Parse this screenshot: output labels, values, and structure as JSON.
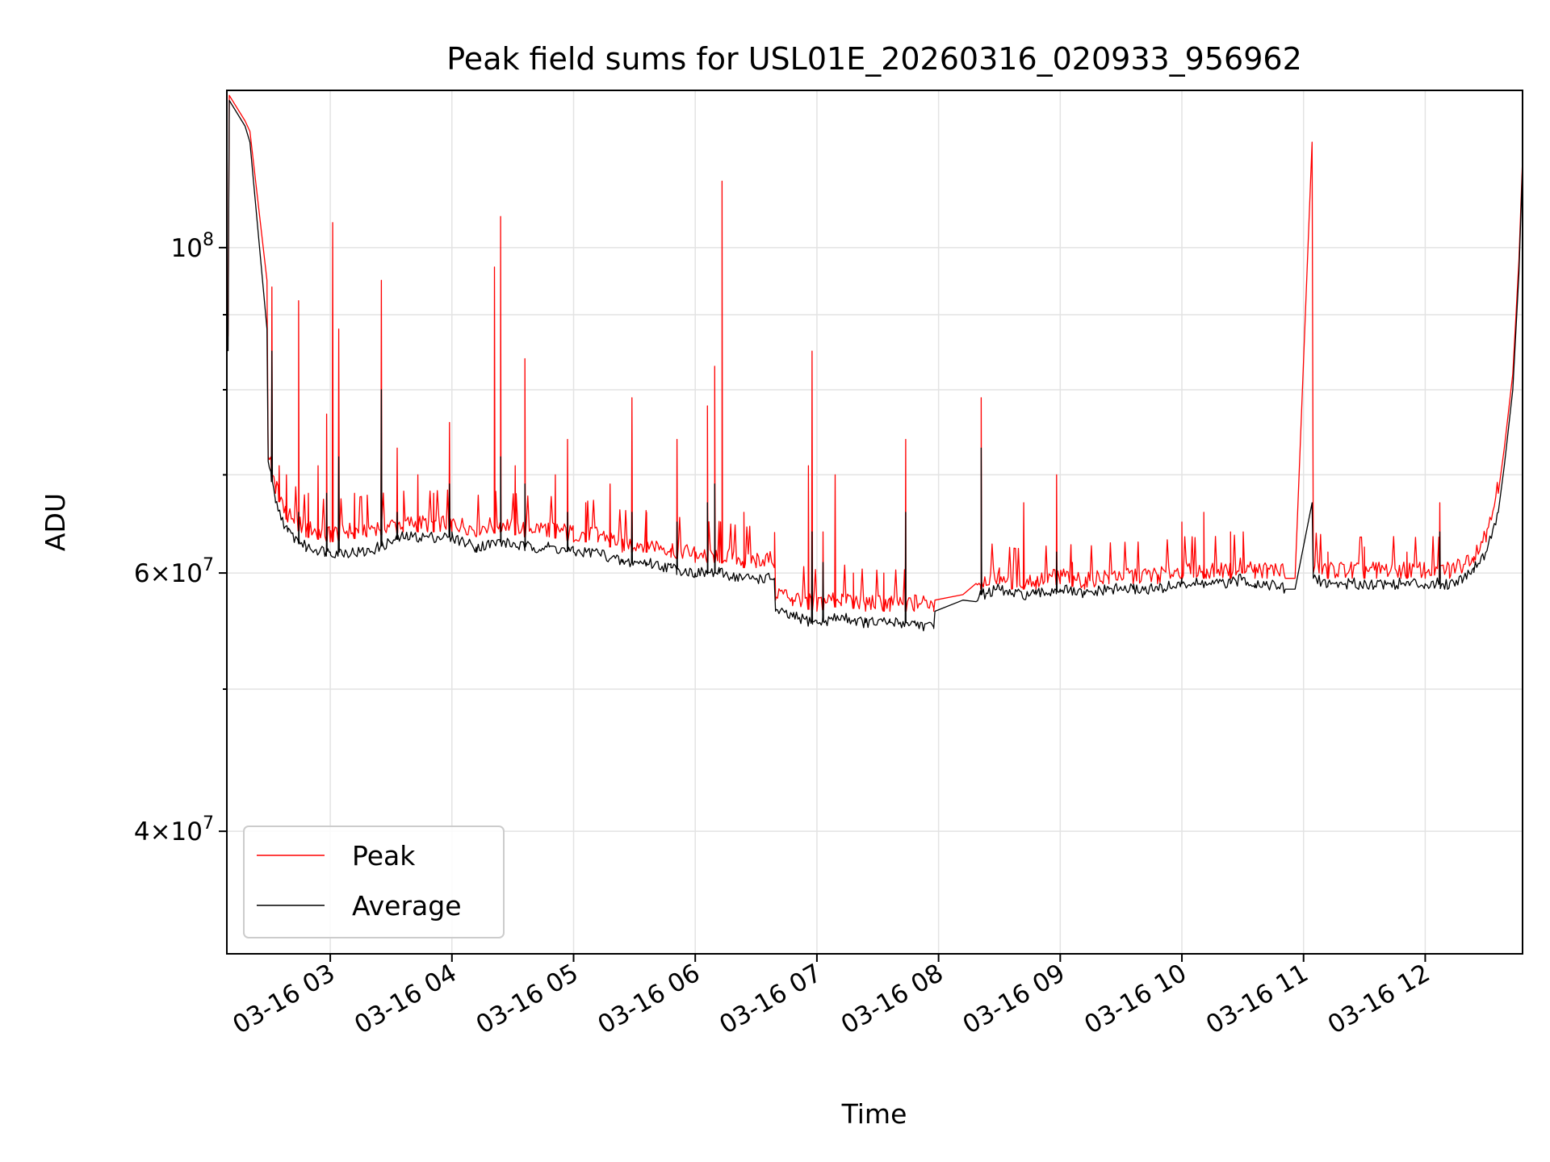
{
  "chart_data": {
    "type": "line",
    "title": "Peak field sums for USL01E_20260316_020933_956962",
    "xlabel": "Time",
    "ylabel": "ADU",
    "yscale": "log",
    "ylim": [
      33000000,
      128000000
    ],
    "xlim": [
      2.15,
      12.8
    ],
    "grid": true,
    "legend_position": "lower-left",
    "x_ticks": [
      {
        "value": 3,
        "label": "03-16 03"
      },
      {
        "value": 4,
        "label": "03-16 04"
      },
      {
        "value": 5,
        "label": "03-16 05"
      },
      {
        "value": 6,
        "label": "03-16 06"
      },
      {
        "value": 7,
        "label": "03-16 07"
      },
      {
        "value": 8,
        "label": "03-16 08"
      },
      {
        "value": 9,
        "label": "03-16 09"
      },
      {
        "value": 10,
        "label": "03-16 10"
      },
      {
        "value": 11,
        "label": "03-16 11"
      },
      {
        "value": 12,
        "label": "03-16 12"
      }
    ],
    "y_ticks": [
      {
        "value": 40000000,
        "base": "4×10",
        "exp": "7"
      },
      {
        "value": 60000000,
        "base": "6×10",
        "exp": "7"
      },
      {
        "value": 100000000,
        "base": "10",
        "exp": "8"
      }
    ],
    "y_minor_ticks": [
      50000000,
      70000000,
      80000000,
      90000000
    ],
    "series": [
      {
        "name": "Peak",
        "color": "#ff0000",
        "x": [
          2.16,
          2.17,
          2.3,
          2.34,
          2.48,
          2.49,
          2.55,
          2.65,
          2.8,
          3.0,
          3.3,
          3.6,
          3.8,
          4.0,
          4.2,
          4.4,
          4.6,
          4.8,
          5.0,
          5.2,
          5.4,
          5.6,
          5.8,
          6.0,
          6.2,
          6.4,
          6.5,
          6.65,
          6.66,
          6.8,
          7.0,
          7.2,
          7.4,
          7.6,
          7.8,
          7.96,
          7.97,
          8.2,
          8.35,
          8.5,
          8.6,
          8.8,
          9.0,
          9.2,
          9.4,
          9.6,
          9.8,
          10.0,
          10.2,
          10.4,
          10.5,
          10.6,
          10.7,
          10.85,
          10.93,
          11.07,
          11.08,
          11.2,
          11.4,
          11.6,
          11.8,
          12.0,
          12.2,
          12.3,
          12.4,
          12.5,
          12.6,
          12.65,
          12.72,
          12.77,
          12.8
        ],
        "values": [
          87000000,
          127000000,
          122000000,
          120000000,
          95000000,
          72000000,
          68000000,
          65000000,
          63500000,
          63000000,
          63500000,
          64000000,
          64000000,
          64000000,
          63500000,
          64000000,
          63500000,
          63500000,
          63000000,
          63000000,
          62000000,
          62000000,
          61500000,
          61000000,
          61000000,
          60500000,
          60500000,
          60500000,
          57500000,
          57000000,
          56500000,
          57000000,
          56500000,
          56500000,
          56500000,
          56500000,
          57500000,
          58000000,
          58500000,
          59000000,
          58500000,
          58500000,
          59000000,
          58500000,
          59000000,
          59000000,
          59000000,
          59500000,
          59500000,
          59500000,
          60000000,
          59500000,
          59500000,
          59500000,
          59500000,
          118000000,
          60000000,
          59500000,
          59500000,
          59500000,
          59500000,
          59500000,
          59500000,
          60000000,
          61000000,
          63000000,
          68000000,
          73000000,
          82000000,
          98000000,
          115000000
        ],
        "spikes": [
          {
            "x": 2.52,
            "value": 94000000
          },
          {
            "x": 2.58,
            "value": 71000000
          },
          {
            "x": 2.64,
            "value": 70000000
          },
          {
            "x": 2.74,
            "value": 92000000
          },
          {
            "x": 2.82,
            "value": 68000000
          },
          {
            "x": 2.9,
            "value": 71000000
          },
          {
            "x": 2.97,
            "value": 77000000
          },
          {
            "x": 3.02,
            "value": 104000000
          },
          {
            "x": 3.07,
            "value": 88000000
          },
          {
            "x": 3.2,
            "value": 68000000
          },
          {
            "x": 3.42,
            "value": 95000000
          },
          {
            "x": 3.55,
            "value": 73000000
          },
          {
            "x": 3.72,
            "value": 70000000
          },
          {
            "x": 3.85,
            "value": 68000000
          },
          {
            "x": 3.98,
            "value": 76000000
          },
          {
            "x": 4.35,
            "value": 97000000
          },
          {
            "x": 4.4,
            "value": 105000000
          },
          {
            "x": 4.52,
            "value": 71000000
          },
          {
            "x": 4.6,
            "value": 84000000
          },
          {
            "x": 4.85,
            "value": 70000000
          },
          {
            "x": 4.95,
            "value": 74000000
          },
          {
            "x": 5.1,
            "value": 67000000
          },
          {
            "x": 5.3,
            "value": 69000000
          },
          {
            "x": 5.48,
            "value": 79000000
          },
          {
            "x": 5.6,
            "value": 66000000
          },
          {
            "x": 5.85,
            "value": 74000000
          },
          {
            "x": 6.1,
            "value": 78000000
          },
          {
            "x": 6.16,
            "value": 83000000
          },
          {
            "x": 6.22,
            "value": 111000000
          },
          {
            "x": 6.4,
            "value": 66000000
          },
          {
            "x": 6.93,
            "value": 71000000
          },
          {
            "x": 6.96,
            "value": 85000000
          },
          {
            "x": 7.05,
            "value": 64000000
          },
          {
            "x": 7.15,
            "value": 70000000
          },
          {
            "x": 7.3,
            "value": 60000000
          },
          {
            "x": 7.55,
            "value": 60000000
          },
          {
            "x": 7.73,
            "value": 74000000
          },
          {
            "x": 8.35,
            "value": 79000000
          },
          {
            "x": 8.7,
            "value": 67000000
          },
          {
            "x": 8.97,
            "value": 70000000
          },
          {
            "x": 9.1,
            "value": 61000000
          },
          {
            "x": 10.0,
            "value": 65000000
          },
          {
            "x": 10.18,
            "value": 66000000
          },
          {
            "x": 10.4,
            "value": 64000000
          },
          {
            "x": 11.2,
            "value": 62000000
          },
          {
            "x": 11.5,
            "value": 62500000
          },
          {
            "x": 11.85,
            "value": 62000000
          },
          {
            "x": 12.12,
            "value": 67000000
          }
        ]
      },
      {
        "name": "Average",
        "color": "#000000",
        "x": [
          2.16,
          2.17,
          2.3,
          2.34,
          2.48,
          2.49,
          2.55,
          2.65,
          2.8,
          3.0,
          3.3,
          3.6,
          3.8,
          4.0,
          4.2,
          4.4,
          4.6,
          4.8,
          5.0,
          5.2,
          5.4,
          5.6,
          5.8,
          6.0,
          6.2,
          6.4,
          6.5,
          6.65,
          6.66,
          6.8,
          7.0,
          7.2,
          7.4,
          7.6,
          7.8,
          7.96,
          7.97,
          8.2,
          8.35,
          8.5,
          8.6,
          8.8,
          9.0,
          9.2,
          9.4,
          9.6,
          9.8,
          10.0,
          10.2,
          10.4,
          10.5,
          10.6,
          10.7,
          10.85,
          10.93,
          11.07,
          11.08,
          11.2,
          11.4,
          11.6,
          11.8,
          12.0,
          12.2,
          12.3,
          12.4,
          12.5,
          12.6,
          12.65,
          12.72,
          12.77,
          12.8
        ],
        "values": [
          85000000,
          126000000,
          121000000,
          118000000,
          88000000,
          71500000,
          67000000,
          64000000,
          62500000,
          62000000,
          62000000,
          63500000,
          63500000,
          63500000,
          62500000,
          63000000,
          62500000,
          62500000,
          62000000,
          62000000,
          61000000,
          61000000,
          60500000,
          60000000,
          60000000,
          59500000,
          59500000,
          59500000,
          56500000,
          56000000,
          55500000,
          56000000,
          55500000,
          55500000,
          55500000,
          55000000,
          56500000,
          57500000,
          58000000,
          58500000,
          58000000,
          58000000,
          58500000,
          58000000,
          58500000,
          58500000,
          58500000,
          59000000,
          59000000,
          59000000,
          59500000,
          59000000,
          59000000,
          58500000,
          58500000,
          67000000,
          59500000,
          59000000,
          59000000,
          59000000,
          59000000,
          59000000,
          59000000,
          59500000,
          60500000,
          62000000,
          66000000,
          71000000,
          80000000,
          96000000,
          114000000
        ],
        "spikes": [
          {
            "x": 2.52,
            "value": 85000000
          },
          {
            "x": 2.74,
            "value": 66000000
          },
          {
            "x": 2.97,
            "value": 68000000
          },
          {
            "x": 3.07,
            "value": 72000000
          },
          {
            "x": 3.42,
            "value": 80000000
          },
          {
            "x": 3.55,
            "value": 66000000
          },
          {
            "x": 3.98,
            "value": 69000000
          },
          {
            "x": 4.4,
            "value": 72000000
          },
          {
            "x": 4.6,
            "value": 69000000
          },
          {
            "x": 4.95,
            "value": 66000000
          },
          {
            "x": 5.48,
            "value": 66000000
          },
          {
            "x": 5.85,
            "value": 65000000
          },
          {
            "x": 6.1,
            "value": 67000000
          },
          {
            "x": 6.16,
            "value": 69000000
          },
          {
            "x": 6.96,
            "value": 64000000
          },
          {
            "x": 7.05,
            "value": 61000000
          },
          {
            "x": 7.73,
            "value": 66000000
          },
          {
            "x": 8.35,
            "value": 73000000
          },
          {
            "x": 8.97,
            "value": 62000000
          },
          {
            "x": 12.12,
            "value": 64000000
          }
        ]
      }
    ]
  }
}
